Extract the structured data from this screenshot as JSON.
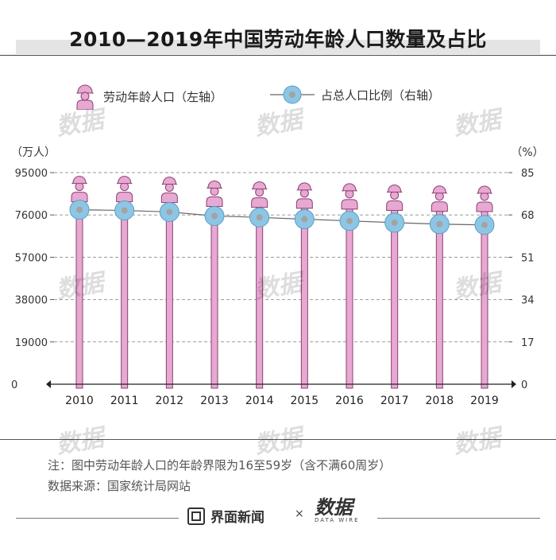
{
  "title": "2010—2019年中国劳动年龄人口数量及占比",
  "legend": {
    "workers": "劳动年龄人口（左轴）",
    "ratio": "占总人口比例（右轴）"
  },
  "notes": {
    "note": "注：图中劳动年龄人口的年龄界限为16至59岁（含不满60周岁）",
    "source": "数据来源：国家统计局网站"
  },
  "footer": {
    "brand": "界面新闻",
    "separator": "×",
    "partner_logo": "数据",
    "partner_sub": "DATA WIRE"
  },
  "watermark_text": "数据",
  "chart_data": {
    "type": "bar+line",
    "title": "2010—2019年中国劳动年龄人口数量及占比",
    "categories": [
      "2010",
      "2011",
      "2012",
      "2013",
      "2014",
      "2015",
      "2016",
      "2017",
      "2018",
      "2019"
    ],
    "left_axis": {
      "label": "（万人）",
      "ticks": [
        "0",
        "19000",
        "38000",
        "57000",
        "76000",
        "95000"
      ],
      "range": [
        0,
        95000
      ]
    },
    "right_axis": {
      "label": "（%）",
      "ticks": [
        "0",
        "17",
        "34",
        "51",
        "68",
        "85"
      ],
      "range": [
        0,
        85
      ]
    },
    "series": [
      {
        "name": "劳动年龄人口",
        "axis": "left",
        "mark": "worker-icon-bar",
        "values": [
          94072,
          94072,
          93727,
          91954,
          91583,
          91096,
          90747,
          90199,
          89729,
          89640
        ]
      },
      {
        "name": "占总人口比例",
        "axis": "right",
        "mark": "line-dots",
        "values": [
          70.1,
          69.8,
          69.2,
          67.6,
          67.0,
          66.3,
          65.6,
          64.9,
          64.3,
          64.0
        ]
      }
    ],
    "grid": true,
    "legend_position": "top"
  },
  "colors": {
    "bar": "#e7a9d2",
    "bar_stroke": "#8a3f73",
    "dot": "#8dc6e5",
    "dot_stroke": "#5a9fc4",
    "dot_center": "#a3a3a3",
    "line": "#666666",
    "grid": "#9a9a9a"
  }
}
